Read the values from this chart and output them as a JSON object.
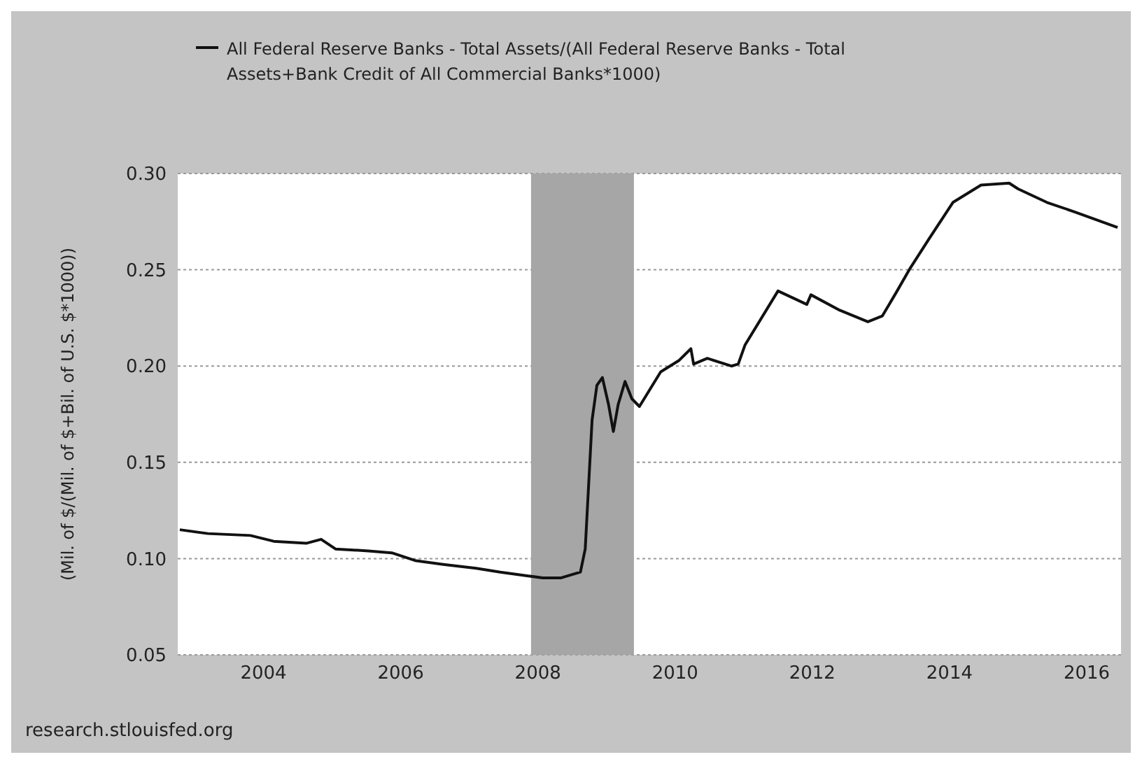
{
  "chart_data": {
    "type": "line",
    "ylabel": "(Mil. of $/(Mil. of $+Bil. of U.S. $*1000))",
    "legend": "top",
    "grid": "y",
    "line_style": "solid",
    "marker": "none",
    "xlim": [
      2002.75,
      2016.5
    ],
    "xticks": [
      2004,
      2006,
      2008,
      2010,
      2012,
      2014,
      2016
    ],
    "ylim": [
      0.05,
      0.3
    ],
    "yticks": [
      {
        "value": 0.05,
        "label": "0.05"
      },
      {
        "value": 0.1,
        "label": "0.10"
      },
      {
        "value": 0.15,
        "label": "0.15"
      },
      {
        "value": 0.2,
        "label": "0.20"
      },
      {
        "value": 0.25,
        "label": "0.25"
      },
      {
        "value": 0.3,
        "label": "0.30"
      }
    ],
    "bands": [
      {
        "axis": "x",
        "from": 2007.9,
        "to": 2009.4,
        "color": "#a6a6a6"
      }
    ],
    "annotations": [
      "research.stlouisfed.org"
    ],
    "x": [
      2002.78,
      2003.19,
      2003.81,
      2004.15,
      2004.63,
      2004.84,
      2005.05,
      2005.53,
      2005.87,
      2006.21,
      2006.62,
      2007.1,
      2007.45,
      2007.86,
      2008.07,
      2008.34,
      2008.62,
      2008.69,
      2008.79,
      2008.86,
      2008.94,
      2009.03,
      2009.1,
      2009.17,
      2009.27,
      2009.37,
      2009.48,
      2009.79,
      2010.06,
      2010.23,
      2010.27,
      2010.47,
      2010.82,
      2010.92,
      2011.02,
      2011.5,
      2011.92,
      2011.98,
      2012.4,
      2012.81,
      2013.02,
      2013.22,
      2013.43,
      2013.7,
      2014.05,
      2014.46,
      2014.87,
      2015.0,
      2015.42,
      2015.83,
      2016.45
    ],
    "series": [
      {
        "name": "All Federal Reserve Banks - Total Assets/(All Federal Reserve Banks - Total Assets+Bank Credit of All Commercial Banks*1000)",
        "color": "#111111",
        "values": [
          0.115,
          0.113,
          0.112,
          0.109,
          0.108,
          0.11,
          0.105,
          0.104,
          0.103,
          0.099,
          0.097,
          0.095,
          0.093,
          0.091,
          0.09,
          0.09,
          0.093,
          0.105,
          0.172,
          0.19,
          0.194,
          0.18,
          0.166,
          0.18,
          0.192,
          0.183,
          0.179,
          0.197,
          0.203,
          0.209,
          0.201,
          0.204,
          0.2,
          0.201,
          0.211,
          0.239,
          0.232,
          0.237,
          0.229,
          0.223,
          0.226,
          0.238,
          0.251,
          0.266,
          0.285,
          0.294,
          0.295,
          0.292,
          0.285,
          0.28,
          0.272
        ]
      }
    ]
  }
}
